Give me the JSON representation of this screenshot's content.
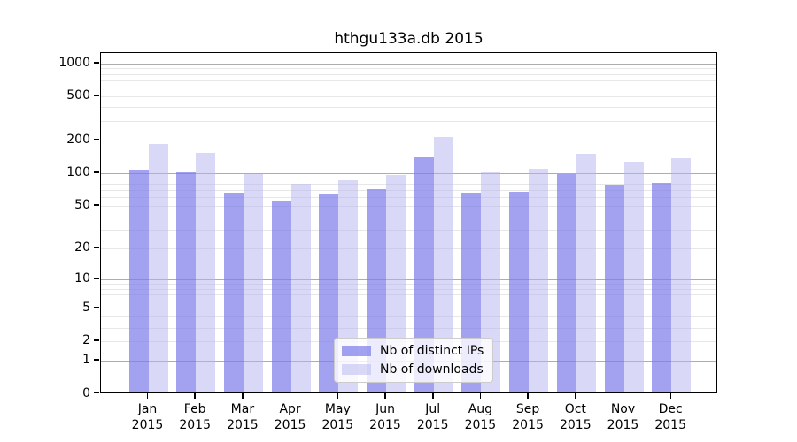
{
  "chart_data": {
    "type": "bar",
    "title": "hthgu133a.db 2015",
    "categories": [
      "Jan",
      "Feb",
      "Mar",
      "Apr",
      "May",
      "Jun",
      "Jul",
      "Aug",
      "Sep",
      "Oct",
      "Nov",
      "Dec"
    ],
    "x_year": "2015",
    "series": [
      {
        "name": "Nb of distinct IPs",
        "color": "rgba(122,122,235,0.70)",
        "values": [
          105,
          100,
          65,
          55,
          63,
          70,
          136,
          65,
          66,
          97,
          77,
          79
        ]
      },
      {
        "name": "Nb of downloads",
        "color": "rgba(180,180,240,0.50)",
        "values": [
          180,
          150,
          97,
          78,
          85,
          94,
          210,
          100,
          108,
          148,
          124,
          135
        ]
      }
    ],
    "yscale": "log1p",
    "yticks": [
      0,
      1,
      2,
      5,
      10,
      20,
      50,
      100,
      200,
      500,
      1000
    ],
    "ylim": [
      0,
      1230
    ],
    "grid": true,
    "legend_position": "lower center",
    "major_grid_values": [
      1,
      10,
      100,
      1000
    ],
    "minor_grid_values": [
      2,
      3,
      4,
      6,
      7,
      8,
      9,
      20,
      30,
      40,
      60,
      70,
      80,
      90,
      200,
      300,
      400,
      600,
      700,
      800,
      900,
      5,
      50,
      500
    ],
    "colors": {
      "major_grid": "#adadad",
      "minor_grid": "#e7e7e7",
      "spine": "#000000",
      "background": "#ffffff",
      "text": "#000000"
    }
  }
}
